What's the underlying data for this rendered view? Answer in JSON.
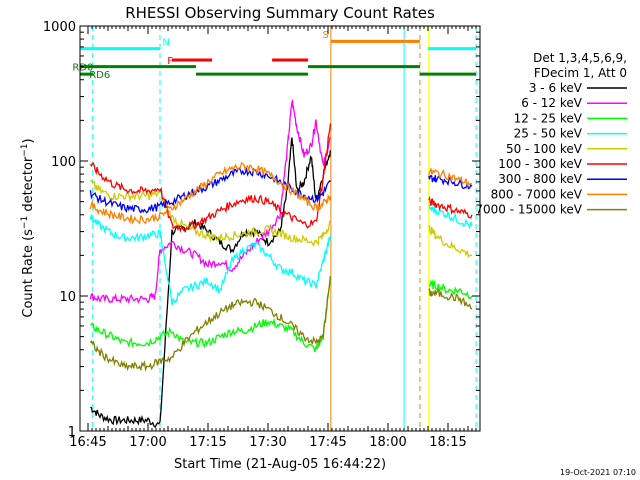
{
  "chart_data": {
    "type": "line",
    "title": "RHESSI Observing Summary Count Rates",
    "xlabel": "Start Time (21-Aug-05 16:44:22)",
    "ylabel": "Count Rate (s⁻¹ detector⁻¹)",
    "ylabel_base": "Count Rate (s",
    "ylabel_sup": "−1",
    "ylabel_mid": " detector",
    "ylabel_sup2": "−1",
    "ylabel_end": ")",
    "x_range_min": [
      16.7167,
      18.3833
    ],
    "x_ticks_min": [
      {
        "v": 16.75,
        "label": "16:45"
      },
      {
        "v": 17.0,
        "label": "17:00"
      },
      {
        "v": 17.25,
        "label": "17:15"
      },
      {
        "v": 17.5,
        "label": "17:30"
      },
      {
        "v": 17.75,
        "label": "17:45"
      },
      {
        "v": 18.0,
        "label": "18:00"
      },
      {
        "v": 18.25,
        "label": "18:15"
      }
    ],
    "y_scale": "log",
    "ylim": [
      1,
      1000
    ],
    "y_ticks": [
      {
        "v": 1,
        "label": "1"
      },
      {
        "v": 10,
        "label": "10"
      },
      {
        "v": 100,
        "label": "100"
      },
      {
        "v": 1000,
        "label": "1000"
      }
    ],
    "timestamp": "19-Oct-2021 07:10",
    "legend_header": [
      "Det 1,3,4,5,6,9,",
      "FDecim 1, Att 0"
    ],
    "legend_placement": "right",
    "series": [
      {
        "name": "3 - 6 keV",
        "color": "#000000",
        "x": [
          16.76,
          16.8,
          16.85,
          16.9,
          16.95,
          17.0,
          17.05,
          17.1,
          17.15,
          17.2,
          17.25,
          17.3,
          17.35,
          17.4,
          17.45,
          17.5,
          17.55,
          17.58,
          17.6,
          17.62,
          17.65,
          17.68,
          17.7,
          17.73,
          17.76
        ],
        "y": [
          1.5,
          1.3,
          1.2,
          1.2,
          1.2,
          1.2,
          1.1,
          30,
          32,
          35,
          30,
          25,
          22,
          30,
          30,
          25,
          30,
          60,
          150,
          60,
          70,
          110,
          50,
          80,
          120
        ]
      },
      {
        "name": "6 - 12 keV",
        "color": "#ff00ff",
        "x": [
          16.76,
          16.8,
          16.85,
          16.9,
          16.95,
          17.0,
          17.03,
          17.05,
          17.1,
          17.15,
          17.2,
          17.25,
          17.3,
          17.35,
          17.4,
          17.45,
          17.5,
          17.55,
          17.58,
          17.6,
          17.62,
          17.65,
          17.68,
          17.7,
          17.73,
          17.76
        ],
        "y": [
          10,
          9.5,
          9.5,
          9.5,
          9.5,
          9.5,
          10,
          22,
          25,
          22,
          20,
          17,
          18,
          16,
          20,
          25,
          30,
          40,
          120,
          280,
          180,
          110,
          130,
          200,
          90,
          150
        ]
      },
      {
        "name": "12 - 25 keV",
        "color": "#00ff00",
        "x": [
          16.76,
          16.8,
          16.85,
          16.9,
          16.95,
          17.0,
          17.05,
          17.1,
          17.15,
          17.2,
          17.25,
          17.3,
          17.35,
          17.4,
          17.45,
          17.5,
          17.55,
          17.6,
          17.65,
          17.7,
          17.73,
          17.76,
          18.17,
          18.2,
          18.25,
          18.3,
          18.35
        ],
        "y": [
          6,
          5.5,
          5,
          4.5,
          4.5,
          4.5,
          5,
          5.5,
          4.5,
          4.5,
          4.5,
          5,
          5.5,
          5.5,
          6,
          6.5,
          6,
          5.5,
          4.5,
          4,
          5,
          14,
          12,
          12,
          11,
          11,
          10
        ]
      },
      {
        "name": "25 - 50 keV",
        "color": "#00ffff",
        "x": [
          16.76,
          16.8,
          16.85,
          16.9,
          16.95,
          17.0,
          17.05,
          17.1,
          17.15,
          17.2,
          17.25,
          17.3,
          17.35,
          17.4,
          17.45,
          17.5,
          17.55,
          17.6,
          17.65,
          17.7,
          17.73,
          17.76,
          18.17,
          18.2,
          18.25,
          18.3,
          18.35
        ],
        "y": [
          38,
          33,
          29,
          27,
          27,
          28,
          29,
          9,
          11,
          12,
          13,
          11,
          18,
          22,
          24,
          20,
          16,
          15,
          13,
          12,
          18,
          28,
          45,
          43,
          40,
          36,
          33
        ]
      },
      {
        "name": "50 - 100 keV",
        "color": "#cccc00",
        "x": [
          16.76,
          16.8,
          16.85,
          16.9,
          16.95,
          17.0,
          17.05,
          17.1,
          17.15,
          17.2,
          17.25,
          17.3,
          17.35,
          17.4,
          17.45,
          17.5,
          17.55,
          17.6,
          17.65,
          17.7,
          17.73,
          17.76,
          18.17,
          18.2,
          18.25,
          18.3,
          18.35
        ],
        "y": [
          70,
          60,
          55,
          55,
          55,
          55,
          58,
          38,
          33,
          30,
          28,
          27,
          28,
          29,
          30,
          31,
          29,
          27,
          26,
          25,
          28,
          35,
          32,
          28,
          24,
          22,
          20
        ]
      },
      {
        "name": "100 - 300 keV",
        "color": "#ff0000",
        "x": [
          16.76,
          16.8,
          16.85,
          16.9,
          16.95,
          17.0,
          17.05,
          17.1,
          17.15,
          17.2,
          17.25,
          17.3,
          17.35,
          17.4,
          17.45,
          17.5,
          17.55,
          17.6,
          17.65,
          17.7,
          17.73,
          17.76,
          18.17,
          18.2,
          18.25,
          18.3,
          18.35
        ],
        "y": [
          95,
          80,
          68,
          62,
          60,
          60,
          63,
          33,
          32,
          34,
          38,
          43,
          48,
          52,
          53,
          50,
          43,
          38,
          34,
          35,
          75,
          190,
          50,
          48,
          45,
          42,
          40
        ]
      },
      {
        "name": "300 - 800 keV",
        "color": "#0000ff",
        "x": [
          16.76,
          16.8,
          16.85,
          16.9,
          16.95,
          17.0,
          17.05,
          17.1,
          17.15,
          17.2,
          17.25,
          17.3,
          17.35,
          17.4,
          17.45,
          17.5,
          17.55,
          17.6,
          17.65,
          17.7,
          17.73,
          17.76,
          18.17,
          18.2,
          18.25,
          18.3,
          18.35
        ],
        "y": [
          58,
          52,
          48,
          45,
          44,
          44,
          46,
          50,
          55,
          60,
          65,
          72,
          80,
          85,
          83,
          78,
          70,
          62,
          56,
          52,
          58,
          70,
          75,
          74,
          72,
          68,
          65
        ]
      },
      {
        "name": "800 - 7000 keV",
        "color": "#ff8000",
        "x": [
          16.76,
          16.8,
          16.85,
          16.9,
          16.95,
          17.0,
          17.05,
          17.1,
          17.15,
          17.2,
          17.25,
          17.3,
          17.35,
          17.4,
          17.45,
          17.5,
          17.55,
          17.6,
          17.65,
          17.7,
          17.73,
          17.76,
          18.17,
          18.2,
          18.25,
          18.3,
          18.35
        ],
        "y": [
          47,
          43,
          40,
          38,
          37,
          37,
          39,
          45,
          52,
          60,
          70,
          80,
          88,
          92,
          88,
          80,
          70,
          60,
          52,
          45,
          48,
          55,
          83,
          82,
          78,
          72,
          68
        ]
      },
      {
        "name": "7000 - 15000 keV",
        "color": "#808000",
        "x": [
          16.76,
          16.8,
          16.85,
          16.9,
          16.95,
          17.0,
          17.05,
          17.1,
          17.15,
          17.2,
          17.25,
          17.3,
          17.35,
          17.4,
          17.45,
          17.5,
          17.55,
          17.6,
          17.65,
          17.7,
          17.73,
          17.76,
          18.17,
          18.2,
          18.25,
          18.3,
          18.35
        ],
        "y": [
          4.5,
          3.8,
          3.3,
          3.0,
          3.0,
          3.0,
          3.3,
          3.5,
          4.5,
          5.5,
          6.5,
          7.5,
          8.5,
          9,
          9,
          8,
          7,
          6,
          5,
          4.5,
          5,
          14,
          10.5,
          10.5,
          10,
          9.5,
          8
        ]
      }
    ],
    "overlays": {
      "vlines": [
        {
          "x": 16.77,
          "color": "#00ffff",
          "dash": "dashed"
        },
        {
          "x": 17.05,
          "color": "#00ffff",
          "dash": "dashed"
        },
        {
          "x": 17.762,
          "color": "#ff8000",
          "dash": "solid"
        },
        {
          "x": 18.067,
          "color": "#00ffff",
          "dash": "solid"
        },
        {
          "x": 18.133,
          "color": "#ff8000",
          "dash": "dashed"
        },
        {
          "x": 18.17,
          "color": "#ffff00",
          "dash": "solid"
        },
        {
          "x": 18.367,
          "color": "#00ffff",
          "dash": "dashed"
        }
      ],
      "bars": [
        {
          "y": 680,
          "x1": 16.717,
          "x2": 17.05,
          "color": "#00ffff"
        },
        {
          "y": 680,
          "x1": 18.167,
          "x2": 18.367,
          "color": "#00ffff"
        },
        {
          "y": 560,
          "x1": 17.1,
          "x2": 17.267,
          "color": "#ff0000"
        },
        {
          "y": 560,
          "x1": 17.517,
          "x2": 17.667,
          "color": "#ff0000"
        },
        {
          "y": 770,
          "x1": 17.762,
          "x2": 18.133,
          "color": "#ff8000"
        },
        {
          "y": 500,
          "x1": 16.717,
          "x2": 17.2,
          "color": "#008000"
        },
        {
          "y": 500,
          "x1": 17.667,
          "x2": 18.133,
          "color": "#008000"
        },
        {
          "y": 440,
          "x1": 16.717,
          "x2": 16.77,
          "color": "#008000"
        },
        {
          "y": 440,
          "x1": 17.2,
          "x2": 17.667,
          "color": "#008000"
        },
        {
          "y": 440,
          "x1": 18.133,
          "x2": 18.367,
          "color": "#008000"
        }
      ],
      "labels": [
        {
          "text": "N",
          "x": 17.06,
          "y": 770,
          "color": "#00ffff"
        },
        {
          "text": "F",
          "x": 17.08,
          "y": 560,
          "color": "#ff0000"
        },
        {
          "text": "S",
          "x": 17.727,
          "y": 870,
          "color": "#ff8000"
        },
        {
          "text": "RD0",
          "x": 16.685,
          "y": 500,
          "color": "#008000"
        },
        {
          "text": "RD6",
          "x": 16.755,
          "y": 440,
          "color": "#008000"
        }
      ]
    }
  }
}
